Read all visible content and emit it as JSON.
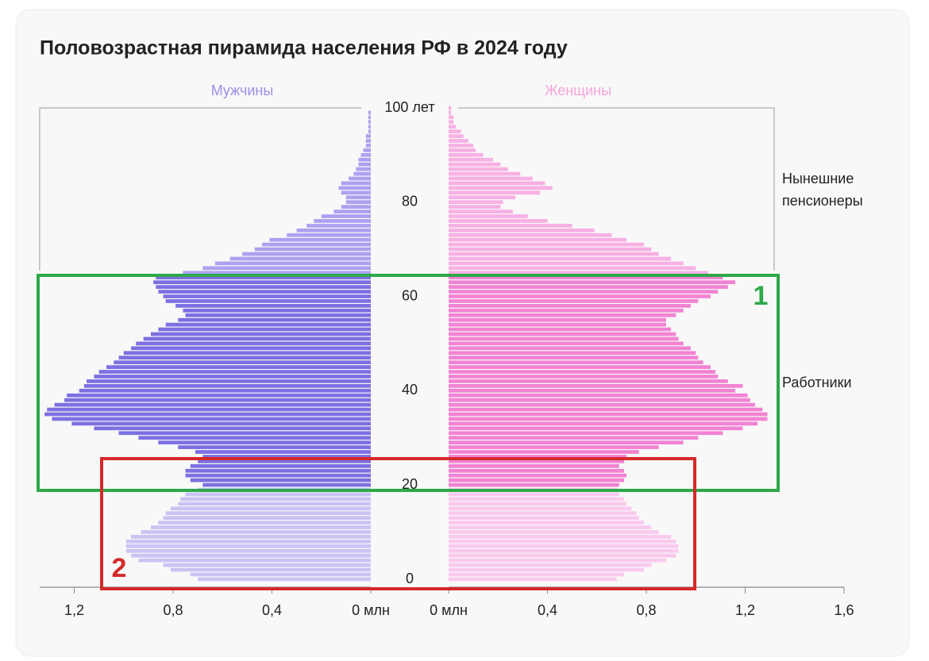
{
  "chart_data": {
    "type": "population_pyramid",
    "title": "Половозрастная пирамида населения РФ в 2024 году",
    "ages": [
      0,
      1,
      2,
      3,
      4,
      5,
      6,
      7,
      8,
      9,
      10,
      11,
      12,
      13,
      14,
      15,
      16,
      17,
      18,
      19,
      20,
      21,
      22,
      23,
      24,
      25,
      26,
      27,
      28,
      29,
      30,
      31,
      32,
      33,
      34,
      35,
      36,
      37,
      38,
      39,
      40,
      41,
      42,
      43,
      44,
      45,
      46,
      47,
      48,
      49,
      50,
      51,
      52,
      53,
      54,
      55,
      56,
      57,
      58,
      59,
      60,
      61,
      62,
      63,
      64,
      65,
      66,
      67,
      68,
      69,
      70,
      71,
      72,
      73,
      74,
      75,
      76,
      77,
      78,
      79,
      80,
      81,
      82,
      83,
      84,
      85,
      86,
      87,
      88,
      89,
      90,
      91,
      92,
      93,
      94,
      95,
      96,
      97,
      98,
      99,
      100
    ],
    "ylim": [
      0,
      100
    ],
    "yticks": [
      0,
      20,
      40,
      60,
      80,
      {
        "value": 100,
        "label": "100 лет"
      }
    ],
    "xlim_left": [
      0,
      1.34
    ],
    "xticks_left": [
      {
        "value": 0,
        "label": "0 млн"
      },
      {
        "value": 0.4,
        "label": "0,4"
      },
      {
        "value": 0.8,
        "label": "0,8"
      },
      {
        "value": 1.2,
        "label": "1,2"
      }
    ],
    "xlim_right": [
      0,
      1.6
    ],
    "xticks_right": [
      {
        "value": 0,
        "label": "0 млн"
      },
      {
        "value": 0.4,
        "label": "0,4"
      },
      {
        "value": 0.8,
        "label": "0,8"
      },
      {
        "value": 1.2,
        "label": "1,2"
      },
      {
        "value": 1.6,
        "label": "1,6"
      }
    ],
    "series": [
      {
        "name": "Мужчины",
        "side": "left",
        "color": "#9b8fe6",
        "color_bands": [
          {
            "from": 0,
            "to": 19,
            "color": "#cbc3f3"
          },
          {
            "from": 20,
            "to": 64,
            "color": "#7c70e2"
          },
          {
            "from": 65,
            "to": 100,
            "color": "#aca1f0"
          }
        ],
        "values": [
          0.7,
          0.73,
          0.81,
          0.84,
          0.94,
          0.97,
          0.99,
          0.99,
          0.99,
          0.97,
          0.93,
          0.89,
          0.86,
          0.84,
          0.83,
          0.81,
          0.78,
          0.77,
          0.75,
          0.7,
          0.68,
          0.73,
          0.75,
          0.75,
          0.73,
          0.7,
          0.68,
          0.71,
          0.78,
          0.86,
          0.94,
          1.02,
          1.12,
          1.21,
          1.29,
          1.32,
          1.31,
          1.28,
          1.24,
          1.23,
          1.18,
          1.16,
          1.15,
          1.12,
          1.1,
          1.07,
          1.04,
          1.02,
          1.0,
          0.97,
          0.95,
          0.92,
          0.89,
          0.86,
          0.83,
          0.78,
          0.75,
          0.76,
          0.79,
          0.83,
          0.84,
          0.86,
          0.87,
          0.88,
          0.87,
          0.76,
          0.68,
          0.63,
          0.57,
          0.52,
          0.47,
          0.44,
          0.41,
          0.34,
          0.3,
          0.26,
          0.23,
          0.2,
          0.15,
          0.12,
          0.1,
          0.1,
          0.12,
          0.13,
          0.12,
          0.09,
          0.07,
          0.06,
          0.05,
          0.05,
          0.04,
          0.03,
          0.02,
          0.02,
          0.02,
          0.01,
          0.01,
          0.01,
          0.01,
          0.01,
          0.0
        ]
      },
      {
        "name": "Женщины",
        "side": "right",
        "color": "#f4a3dc",
        "color_bands": [
          {
            "from": 0,
            "to": 19,
            "color": "#fac9ee"
          },
          {
            "from": 20,
            "to": 64,
            "color": "#f283d3"
          },
          {
            "from": 65,
            "to": 100,
            "color": "#f7b0e4"
          }
        ],
        "values": [
          0.68,
          0.71,
          0.79,
          0.82,
          0.88,
          0.92,
          0.93,
          0.93,
          0.92,
          0.9,
          0.85,
          0.82,
          0.79,
          0.77,
          0.76,
          0.74,
          0.72,
          0.71,
          0.69,
          0.68,
          0.69,
          0.71,
          0.72,
          0.71,
          0.69,
          0.71,
          0.72,
          0.77,
          0.85,
          0.95,
          1.01,
          1.11,
          1.19,
          1.25,
          1.29,
          1.29,
          1.27,
          1.24,
          1.22,
          1.21,
          1.16,
          1.19,
          1.13,
          1.09,
          1.08,
          1.06,
          1.03,
          1.01,
          1.0,
          0.98,
          0.95,
          0.93,
          0.92,
          0.9,
          0.88,
          0.88,
          0.92,
          0.95,
          0.98,
          1.01,
          1.06,
          1.09,
          1.13,
          1.16,
          1.11,
          1.05,
          1.0,
          0.95,
          0.9,
          0.85,
          0.82,
          0.79,
          0.72,
          0.66,
          0.59,
          0.5,
          0.4,
          0.32,
          0.26,
          0.21,
          0.22,
          0.27,
          0.37,
          0.42,
          0.39,
          0.34,
          0.29,
          0.24,
          0.21,
          0.18,
          0.14,
          0.11,
          0.1,
          0.08,
          0.06,
          0.05,
          0.03,
          0.02,
          0.02,
          0.01,
          0.01
        ]
      }
    ],
    "annotations": {
      "pensioners": [
        "Нынешние",
        "пенсионеры"
      ],
      "workers": "Работники",
      "box1": "1",
      "box2": "2"
    }
  }
}
